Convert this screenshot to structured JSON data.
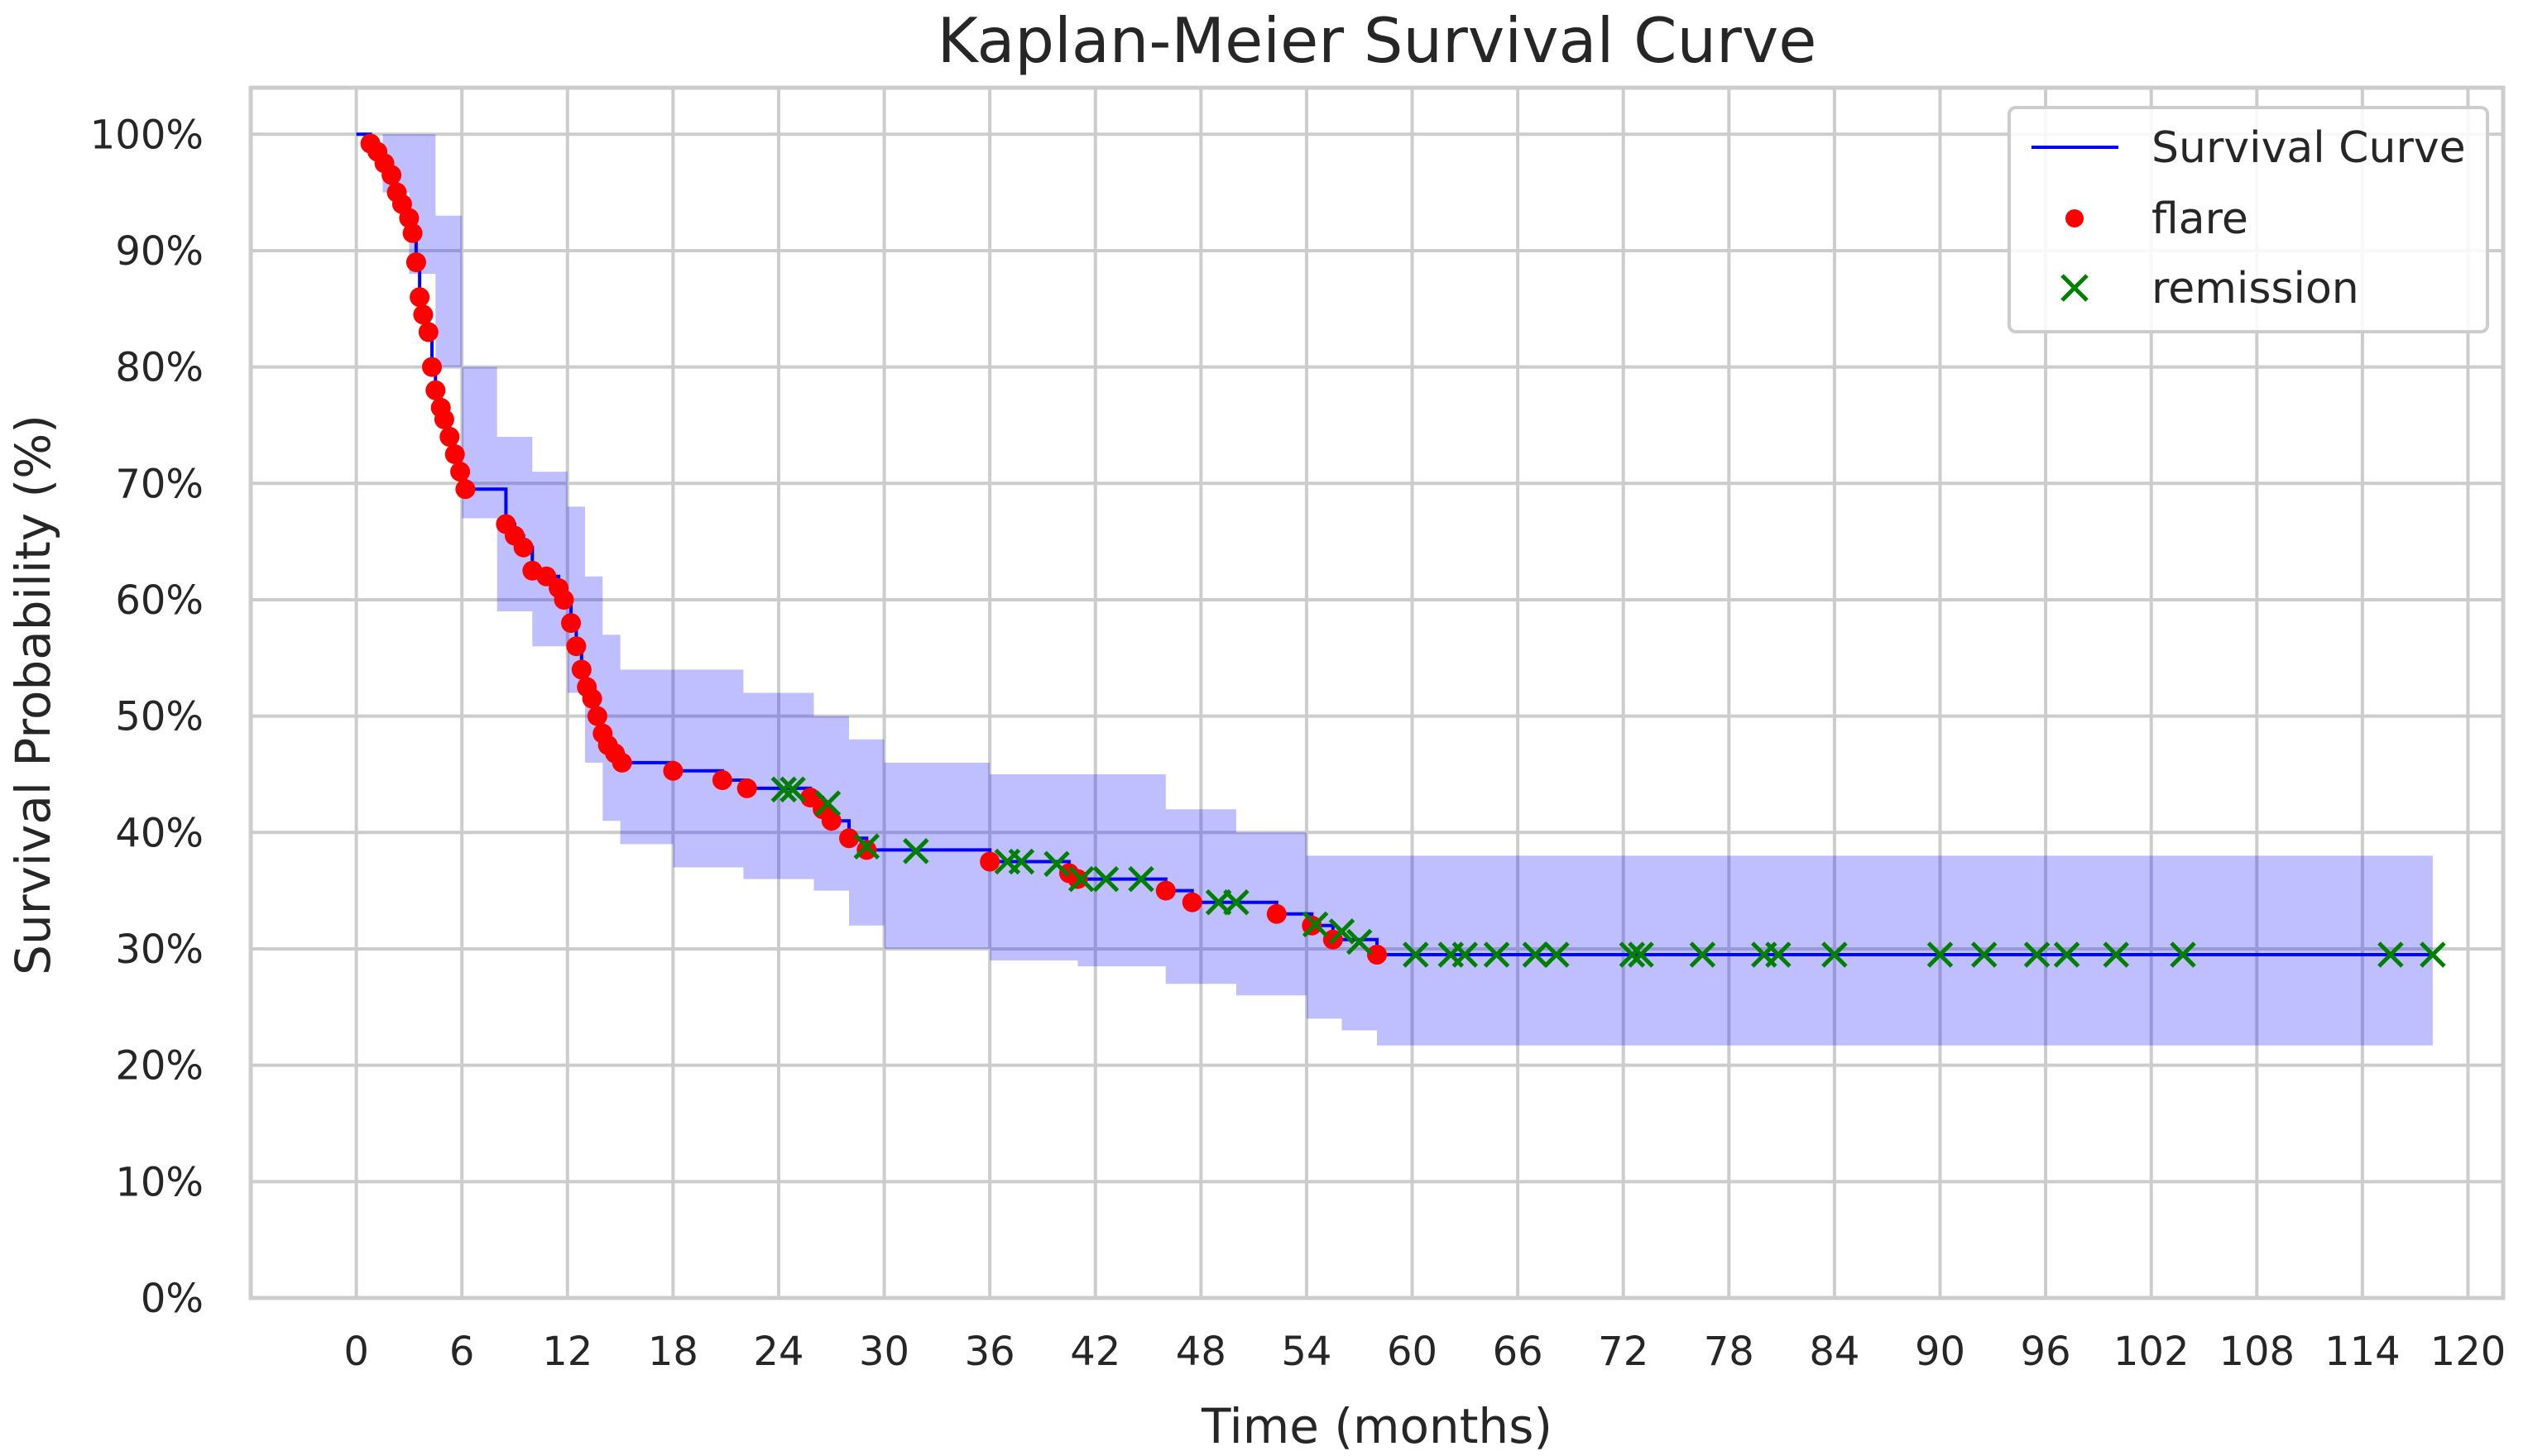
{
  "chart_data": {
    "type": "line",
    "title": "Kaplan-Meier Survival Curve",
    "xlabel": "Time (months)",
    "ylabel": "Survival Probability (%)",
    "xlim": [
      -6,
      122
    ],
    "ylim": [
      0,
      104
    ],
    "grid": true,
    "legend_position": "top-right",
    "x_ticks": [
      0,
      6,
      12,
      18,
      24,
      30,
      36,
      42,
      48,
      54,
      60,
      66,
      72,
      78,
      84,
      90,
      96,
      102,
      108,
      114,
      120
    ],
    "y_ticks": [
      0,
      10,
      20,
      30,
      40,
      50,
      60,
      70,
      80,
      90,
      100
    ],
    "y_tick_suffix": "%",
    "colors": {
      "survival_line": "#0000ff",
      "ci_band": "#0000ff",
      "flare": "#ff0000",
      "remission": "#008000",
      "grid": "#cccccc",
      "axes": "#cccccc"
    },
    "legend": [
      {
        "key": "survival",
        "label": "Survival Curve"
      },
      {
        "key": "flare",
        "label": "flare"
      },
      {
        "key": "remission",
        "label": "remission"
      }
    ],
    "series": [
      {
        "name": "Survival Curve",
        "step": true,
        "x": [
          0,
          0.8,
          1.2,
          1.6,
          2.0,
          2.3,
          2.6,
          3.0,
          3.2,
          3.4,
          3.6,
          3.8,
          4.1,
          4.3,
          4.5,
          4.8,
          5.0,
          5.3,
          5.6,
          5.9,
          6.2,
          8.5,
          9.0,
          9.5,
          10.0,
          10.8,
          11.5,
          11.8,
          12.2,
          12.5,
          12.8,
          13.1,
          13.4,
          13.7,
          14.0,
          14.3,
          14.7,
          15.1,
          18.0,
          20.8,
          22.2,
          25.8,
          26.5,
          27.0,
          28.0,
          29.0,
          36.0,
          40.5,
          41.0,
          46.0,
          47.5,
          52.3,
          54.3,
          55.5,
          58.0,
          118
        ],
        "y": [
          100,
          99.2,
          98.5,
          97.5,
          96.5,
          95.0,
          94.0,
          92.8,
          91.5,
          89.0,
          86.0,
          84.5,
          83.0,
          80.0,
          78.0,
          76.5,
          75.5,
          74.0,
          72.5,
          71.0,
          69.5,
          66.5,
          65.5,
          64.5,
          62.5,
          62.0,
          61.0,
          60.0,
          58.0,
          56.0,
          54.0,
          52.5,
          51.5,
          50.0,
          48.5,
          47.5,
          46.8,
          46.0,
          45.3,
          44.5,
          43.8,
          43.0,
          42.0,
          41.0,
          39.5,
          38.5,
          37.5,
          36.5,
          36.0,
          35.0,
          34.0,
          33.0,
          32.0,
          30.8,
          29.5,
          29.5
        ]
      },
      {
        "name": "Confidence Interval",
        "step": true,
        "x": [
          0,
          1.5,
          3.0,
          4.5,
          6.0,
          8.0,
          10.0,
          12.0,
          13.0,
          14.0,
          15.0,
          18.0,
          22.0,
          26.0,
          28.0,
          30.0,
          36.0,
          41.0,
          46.0,
          50.0,
          54.0,
          56.0,
          58.0,
          118
        ],
        "upper": [
          100,
          100,
          100,
          93,
          80,
          74,
          71,
          68,
          62,
          57,
          54,
          54,
          52,
          50,
          48,
          46,
          45,
          45,
          42,
          40,
          38,
          38,
          38,
          38
        ],
        "lower": [
          100,
          95,
          88,
          80,
          67,
          59,
          56,
          52,
          46,
          41,
          39,
          37,
          36,
          35,
          32,
          30,
          29,
          28.5,
          27,
          26,
          24,
          23,
          21.7,
          21.7
        ]
      },
      {
        "name": "flare",
        "marker": "circle",
        "x": [
          0.8,
          1.2,
          1.6,
          2.0,
          2.3,
          2.6,
          3.0,
          3.2,
          3.4,
          3.6,
          3.8,
          4.1,
          4.3,
          4.5,
          4.8,
          5.0,
          5.3,
          5.6,
          5.9,
          6.2,
          8.5,
          9.0,
          9.5,
          10.0,
          10.8,
          11.5,
          11.8,
          12.2,
          12.5,
          12.8,
          13.1,
          13.4,
          13.7,
          14.0,
          14.3,
          14.7,
          15.1,
          18.0,
          20.8,
          22.2,
          25.8,
          26.5,
          27.0,
          28.0,
          29.0,
          36.0,
          40.5,
          41.0,
          46.0,
          47.5,
          52.3,
          54.3,
          55.5,
          58.0
        ],
        "y": [
          99.2,
          98.5,
          97.5,
          96.5,
          95.0,
          94.0,
          92.8,
          91.5,
          89.0,
          86.0,
          84.5,
          83.0,
          80.0,
          78.0,
          76.5,
          75.5,
          74.0,
          72.5,
          71.0,
          69.5,
          66.5,
          65.5,
          64.5,
          62.5,
          62.0,
          61.0,
          60.0,
          58.0,
          56.0,
          54.0,
          52.5,
          51.5,
          50.0,
          48.5,
          47.5,
          46.8,
          46.0,
          45.3,
          44.5,
          43.8,
          43.0,
          42.0,
          41.0,
          39.5,
          38.5,
          37.5,
          36.5,
          36.0,
          35.0,
          34.0,
          33.0,
          32.0,
          30.8,
          29.5
        ]
      },
      {
        "name": "remission",
        "marker": "x",
        "x": [
          24.3,
          24.8,
          26.8,
          29.0,
          31.8,
          37.0,
          37.8,
          39.8,
          41.2,
          42.6,
          44.6,
          49.0,
          50.0,
          54.5,
          56.0,
          57.0,
          60.2,
          62.2,
          63.0,
          64.8,
          67.0,
          68.2,
          72.5,
          73.0,
          76.5,
          80.0,
          80.8,
          84.0,
          90.0,
          92.5,
          95.5,
          97.2,
          100.0,
          103.8,
          115.6,
          118.0
        ],
        "y": [
          43.7,
          43.7,
          42.5,
          38.8,
          38.4,
          37.5,
          37.5,
          37.3,
          36.0,
          36.0,
          36.0,
          34.0,
          34.0,
          32.1,
          31.5,
          30.6,
          29.5,
          29.5,
          29.5,
          29.5,
          29.5,
          29.5,
          29.5,
          29.5,
          29.5,
          29.5,
          29.5,
          29.5,
          29.5,
          29.5,
          29.5,
          29.5,
          29.5,
          29.5,
          29.5,
          29.5
        ]
      }
    ]
  }
}
